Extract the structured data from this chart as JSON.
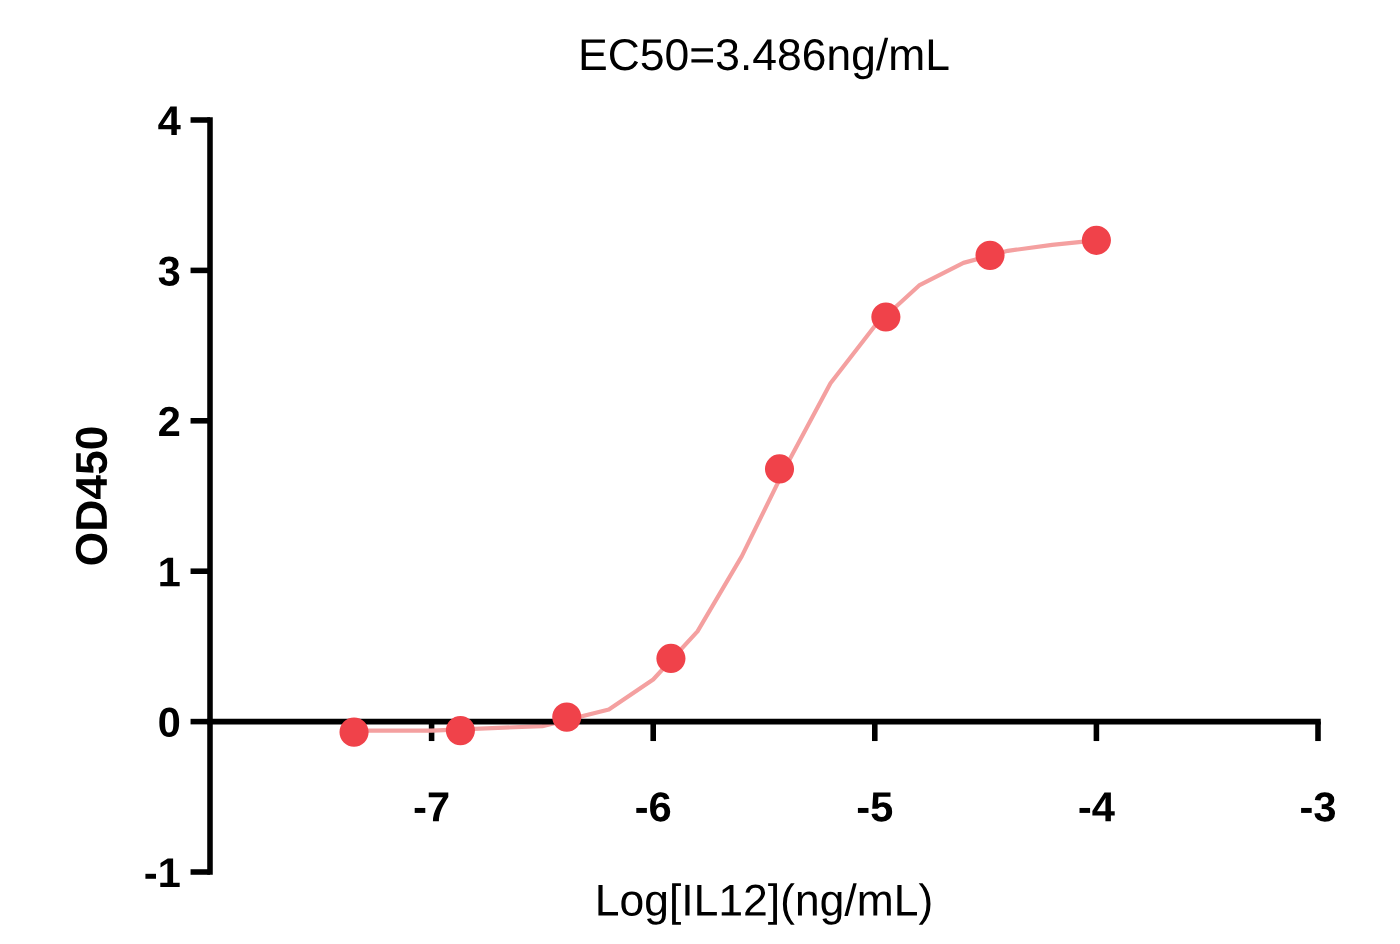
{
  "chart_data": {
    "type": "scatter",
    "title": "EC50=3.486ng/mL",
    "xlabel": "Log[IL12](ng/mL)",
    "ylabel": "OD450",
    "xlim": [
      -8,
      -3
    ],
    "xticks": [
      -7,
      -6,
      -5,
      -4,
      -3
    ],
    "ylim": [
      -1,
      4
    ],
    "yticks": [
      -1,
      0,
      1,
      2,
      3,
      4
    ],
    "grid": false,
    "legend": false,
    "series": [
      {
        "type": "line",
        "color": "#f4a0a0",
        "marker": "none",
        "x": [
          -7.35,
          -7.0,
          -6.5,
          -6.2,
          -6.0,
          -5.8,
          -5.6,
          -5.4,
          -5.2,
          -5.0,
          -4.8,
          -4.6,
          -4.4,
          -4.2,
          -4.0
        ],
        "values": [
          -0.06,
          -0.06,
          -0.03,
          0.08,
          0.28,
          0.6,
          1.1,
          1.7,
          2.25,
          2.63,
          2.9,
          3.05,
          3.13,
          3.17,
          3.2
        ]
      },
      {
        "color": "#f0424a",
        "marker": "circle",
        "x": [
          -7.35,
          -6.87,
          -6.39,
          -5.92,
          -5.43,
          -4.95,
          -4.48,
          -4.0
        ],
        "values": [
          -0.07,
          -0.06,
          0.03,
          0.42,
          1.68,
          2.69,
          3.1,
          3.2
        ]
      }
    ]
  }
}
